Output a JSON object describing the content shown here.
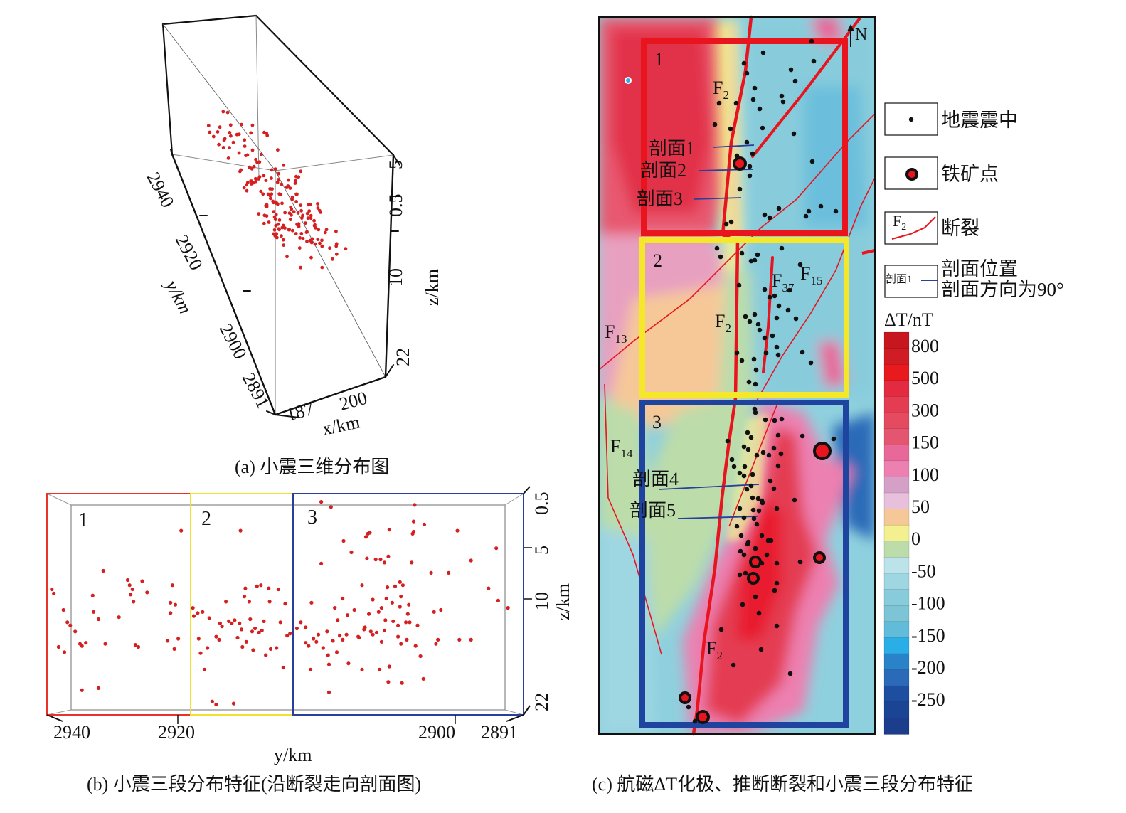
{
  "chart_data": [
    {
      "id": "a",
      "type": "scatter",
      "subtype": "3d-scatter",
      "title": "(a) 小震三维分布图",
      "xlabel": "x/km",
      "ylabel": "y/km",
      "zlabel": "z/km",
      "x_ticks": [
        "187",
        "200"
      ],
      "y_ticks": [
        "2940",
        "2920",
        "2900",
        "2891"
      ],
      "z_ticks": [
        "0.5",
        "5",
        "10",
        "22"
      ],
      "xlim": [
        187,
        204
      ],
      "ylim": [
        2891,
        2940
      ],
      "zlim": [
        0.5,
        22
      ],
      "marker_color": "#d42020",
      "grid": false,
      "note": "Approx. 230 earthquake hypocenters clustered along the fault zone, concentrated between y≈2915–2930 km, x≈192–199 km, z≈1–15 km."
    },
    {
      "id": "b",
      "type": "scatter",
      "title": "(b) 小震三段分布特征(沿断裂走向剖面图)",
      "xlabel": "y/km",
      "ylabel": "z/km",
      "x_ticks": [
        "2940",
        "2920",
        "2900",
        "2891"
      ],
      "y_ticks": [
        "0.5",
        "5",
        "10",
        "22"
      ],
      "xlim": [
        2940,
        2891
      ],
      "ylim": [
        0.5,
        22
      ],
      "grid": false,
      "marker_color": "#d42020",
      "segments": [
        {
          "label": "1",
          "color": "#e8322a",
          "y_range": [
            2940,
            2926
          ]
        },
        {
          "label": "2",
          "color": "#f0e030",
          "y_range": [
            2926,
            2916
          ]
        },
        {
          "label": "3",
          "color": "#2a3f9a",
          "y_range": [
            2916,
            2891
          ]
        }
      ],
      "points": [
        [
          2939.5,
          9.8
        ],
        [
          2939.3,
          10.2
        ],
        [
          2938.3,
          11.8
        ],
        [
          2938.8,
          15.4
        ],
        [
          2938.2,
          15.9
        ],
        [
          2937.9,
          13.0
        ],
        [
          2937.6,
          13.3
        ],
        [
          2937.1,
          13.9
        ],
        [
          2936.4,
          19.6
        ],
        [
          2936.6,
          15.1
        ],
        [
          2936.4,
          15.3
        ],
        [
          2936.0,
          15.0
        ],
        [
          2935.3,
          10.4
        ],
        [
          2935.2,
          12.0
        ],
        [
          2934.7,
          12.7
        ],
        [
          2934.2,
          8.0
        ],
        [
          2934.7,
          19.4
        ],
        [
          2934.0,
          15.1
        ],
        [
          2932.6,
          12.5
        ],
        [
          2931.7,
          8.9
        ],
        [
          2931.5,
          9.4
        ],
        [
          2931.4,
          10.3
        ],
        [
          2931.2,
          9.8
        ],
        [
          2931.1,
          11.0
        ],
        [
          2930.9,
          15.2
        ],
        [
          2930.6,
          15.4
        ],
        [
          2930.2,
          9.0
        ],
        [
          2929.7,
          10.1
        ],
        [
          2927.3,
          11.1
        ],
        [
          2927.6,
          14.8
        ],
        [
          2927.3,
          12.1
        ],
        [
          2927.1,
          9.4
        ],
        [
          2926.9,
          15.6
        ],
        [
          2926.8,
          11.3
        ],
        [
          2926.5,
          14.6
        ],
        [
          2926.2,
          4.1
        ],
        [
          2925.0,
          11.6
        ],
        [
          2924.9,
          12.4
        ],
        [
          2924.5,
          12.1
        ],
        [
          2924.4,
          14.6
        ],
        [
          2924.2,
          16.0
        ],
        [
          2924.0,
          12.0
        ],
        [
          2923.8,
          17.6
        ],
        [
          2923.3,
          12.6
        ],
        [
          2923.5,
          15.5
        ],
        [
          2923.0,
          20.7
        ],
        [
          2922.6,
          21.0
        ],
        [
          2922.6,
          14.4
        ],
        [
          2922.3,
          14.7
        ],
        [
          2922.2,
          13.1
        ],
        [
          2922.0,
          13.4
        ],
        [
          2921.6,
          11.0
        ],
        [
          2921.3,
          12.9
        ],
        [
          2921.0,
          13.1
        ],
        [
          2920.8,
          20.9
        ],
        [
          2920.7,
          12.8
        ],
        [
          2920.4,
          14.5
        ],
        [
          2920.1,
          4.1
        ],
        [
          2920.2,
          13.1
        ],
        [
          2920.0,
          13.7
        ],
        [
          2919.9,
          15.4
        ],
        [
          2919.7,
          10.5
        ],
        [
          2919.6,
          9.7
        ],
        [
          2919.5,
          14.9
        ],
        [
          2919.2,
          11.0
        ],
        [
          2919.1,
          12.7
        ],
        [
          2918.9,
          13.9
        ],
        [
          2918.8,
          15.7
        ],
        [
          2918.6,
          13.6
        ],
        [
          2918.4,
          9.5
        ],
        [
          2918.2,
          14.0
        ],
        [
          2918.0,
          9.4
        ],
        [
          2917.9,
          13.8
        ],
        [
          2917.7,
          12.9
        ],
        [
          2917.5,
          16.2
        ],
        [
          2917.2,
          9.7
        ],
        [
          2917.1,
          11.0
        ],
        [
          2917.0,
          15.6
        ],
        [
          2916.4,
          15.5
        ],
        [
          2916.2,
          9.8
        ],
        [
          2916.0,
          13.0
        ],
        [
          2915.7,
          17.4
        ],
        [
          2915.5,
          11.2
        ],
        [
          2915.3,
          14.3
        ],
        [
          2915.0,
          14.1
        ],
        [
          2914.3,
          13.6
        ],
        [
          2913.9,
          13.0
        ],
        [
          2913.4,
          13.5
        ],
        [
          2913.4,
          15.0
        ],
        [
          2913.1,
          15.3
        ],
        [
          2912.9,
          17.6
        ],
        [
          2912.8,
          11.1
        ],
        [
          2912.6,
          14.6
        ],
        [
          2912.3,
          14.9
        ],
        [
          2912.1,
          14.2
        ],
        [
          2911.8,
          1.3
        ],
        [
          2911.8,
          7.3
        ],
        [
          2911.6,
          15.5
        ],
        [
          2911.2,
          13.9
        ],
        [
          2911.1,
          16.2
        ],
        [
          2911.0,
          19.8
        ],
        [
          2911.0,
          17.1
        ],
        [
          2910.8,
          1.8
        ],
        [
          2910.6,
          14.8
        ],
        [
          2910.4,
          11.6
        ],
        [
          2910.2,
          15.9
        ],
        [
          2910.1,
          12.8
        ],
        [
          2909.9,
          14.3
        ],
        [
          2909.6,
          14.7
        ],
        [
          2909.6,
          10.7
        ],
        [
          2909.5,
          5.1
        ],
        [
          2909.2,
          14.2
        ],
        [
          2909.1,
          12.3
        ],
        [
          2909.0,
          17.0
        ],
        [
          2908.7,
          6.2
        ],
        [
          2908.4,
          11.8
        ],
        [
          2908.0,
          14.4
        ],
        [
          2907.9,
          14.5
        ],
        [
          2907.6,
          17.6
        ],
        [
          2907.6,
          9.4
        ],
        [
          2907.4,
          13.7
        ],
        [
          2907.3,
          13.5
        ],
        [
          2907.2,
          4.7
        ],
        [
          2907.1,
          6.8
        ],
        [
          2907.0,
          4.4
        ],
        [
          2906.8,
          4.3
        ],
        [
          2906.9,
          12.2
        ],
        [
          2906.7,
          13.9
        ],
        [
          2906.5,
          14.2
        ],
        [
          2906.5,
          10.8
        ],
        [
          2906.2,
          6.9
        ],
        [
          2906.1,
          14.0
        ],
        [
          2905.9,
          12.0
        ],
        [
          2905.8,
          17.6
        ],
        [
          2905.7,
          6.9
        ],
        [
          2905.6,
          11.6
        ],
        [
          2905.6,
          14.9
        ],
        [
          2905.3,
          7.2
        ],
        [
          2905.3,
          13.8
        ],
        [
          2905.2,
          12.8
        ],
        [
          2905.1,
          10.7
        ],
        [
          2905.0,
          9.6
        ],
        [
          2904.9,
          18.8
        ],
        [
          2904.9,
          6.6
        ],
        [
          2904.8,
          17.3
        ],
        [
          2904.8,
          4.0
        ],
        [
          2904.5,
          11.1
        ],
        [
          2904.4,
          12.9
        ],
        [
          2904.2,
          9.5
        ],
        [
          2903.9,
          14.4
        ],
        [
          2903.9,
          13.3
        ],
        [
          2903.7,
          11.5
        ],
        [
          2903.7,
          9.1
        ],
        [
          2903.6,
          10.5
        ],
        [
          2903.5,
          18.9
        ],
        [
          2903.6,
          15.1
        ],
        [
          2903.4,
          9.4
        ],
        [
          2903.1,
          13.0
        ],
        [
          2903.0,
          14.7
        ],
        [
          2902.9,
          12.2
        ],
        [
          2902.8,
          11.3
        ],
        [
          2902.7,
          13.0
        ],
        [
          2902.5,
          7.2
        ],
        [
          2902.4,
          4.4
        ],
        [
          2902.3,
          4.2
        ],
        [
          2902.3,
          3.2
        ],
        [
          2902.2,
          1.6
        ],
        [
          2902.1,
          15.3
        ],
        [
          2901.9,
          13.3
        ],
        [
          2901.6,
          16.3
        ],
        [
          2901.2,
          3.5
        ],
        [
          2901.3,
          18.5
        ],
        [
          2900.5,
          8.2
        ],
        [
          2900.2,
          12.0
        ],
        [
          2900.0,
          15.1
        ],
        [
          2899.8,
          14.7
        ],
        [
          2899.5,
          11.8
        ],
        [
          2898.7,
          8.2
        ],
        [
          2897.8,
          4.1
        ],
        [
          2897.6,
          14.7
        ],
        [
          2896.4,
          7.0
        ],
        [
          2896.4,
          14.7
        ],
        [
          2894.6,
          9.7
        ],
        [
          2893.8,
          5.8
        ],
        [
          2893.6,
          10.9
        ],
        [
          2892.6,
          11.6
        ]
      ]
    },
    {
      "id": "c",
      "type": "heatmap",
      "subtype": "contour-map",
      "title": "(c) 航磁ΔT化极、推断断裂和小震三段分布特征",
      "north_label": "N",
      "colorbar": {
        "title": "ΔT/nT",
        "tick_labels": [
          "800",
          "500",
          "300",
          "150",
          "100",
          "50",
          "0",
          "-50",
          "-100",
          "-150",
          "-200",
          "-250"
        ],
        "colors": [
          "#c8161e",
          "#d01c24",
          "#e81a1e",
          "#e42a40",
          "#e43c52",
          "#e44a60",
          "#e45670",
          "#e8689a",
          "#ec80b0",
          "#d4a0c8",
          "#e8c0dc",
          "#f6c898",
          "#f4f090",
          "#bcdcaa",
          "#bce2ea",
          "#9ed6e2",
          "#88ccdc",
          "#7cc4d6",
          "#60bcd8",
          "#2aaee8",
          "#2a82c8",
          "#2a6ab8",
          "#1e4ea0",
          "#1c4494",
          "#1c3c8c"
        ]
      },
      "segments": [
        {
          "label": "1",
          "color": "#e8141e"
        },
        {
          "label": "2",
          "color": "#f5e82a"
        },
        {
          "label": "3",
          "color": "#1f44a0"
        }
      ],
      "faults": [
        {
          "label": "F",
          "sub": "2"
        },
        {
          "label": "F",
          "sub": "37"
        },
        {
          "label": "F",
          "sub": "15"
        },
        {
          "label": "F",
          "sub": "13"
        },
        {
          "label": "F",
          "sub": "14"
        }
      ],
      "profiles": [
        "剖面1",
        "剖面2",
        "剖面3",
        "剖面4",
        "剖面5"
      ],
      "legend": [
        {
          "symbol": "earthquake-epicenter",
          "label": "地震震中"
        },
        {
          "symbol": "iron-mine",
          "label": "铁矿点"
        },
        {
          "symbol": "fault",
          "symbol_text": "F",
          "symbol_sub": "2",
          "label": "断裂"
        },
        {
          "symbol": "profile",
          "symbol_text": "剖面1",
          "label_line1": "剖面位置",
          "label_line2": "剖面方向为90°"
        }
      ],
      "iron_mines": 7,
      "epicenters_shown": "approx. 230"
    }
  ],
  "captions": {
    "a": "(a) 小震三维分布图",
    "b": "(b) 小震三段分布特征(沿断裂走向剖面图)",
    "c": "(c) 航磁ΔT化极、推断断裂和小震三段分布特征"
  }
}
